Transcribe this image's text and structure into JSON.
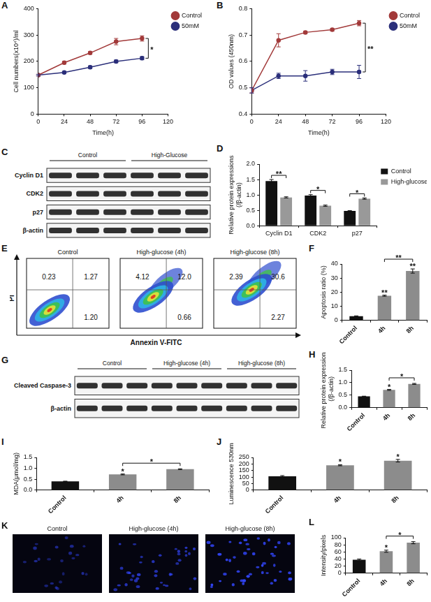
{
  "chart_data": [
    {
      "panel": "A",
      "type": "line",
      "x": [
        0,
        24,
        48,
        72,
        96
      ],
      "xlim": [
        0,
        120
      ],
      "xticks": [
        0,
        24,
        48,
        72,
        96,
        120
      ],
      "ylim": [
        0,
        400
      ],
      "yticks": [
        0,
        100,
        200,
        300,
        400
      ],
      "x_label": "Time(h)",
      "y_label": "Cell numbers(x10⁴)/ml",
      "grid": false,
      "legend": "top-right",
      "marker": "circle",
      "series": [
        {
          "name": "Control",
          "color": "#a23a3a",
          "values": [
            148,
            195,
            232,
            275,
            287
          ],
          "errors": [
            3,
            5,
            5,
            12,
            10
          ]
        },
        {
          "name": "50mM",
          "color": "#2b2f7a",
          "values": [
            148,
            158,
            178,
            200,
            212
          ],
          "errors": [
            3,
            4,
            5,
            5,
            6
          ]
        }
      ],
      "annotations": [
        {
          "text": "*",
          "x": 96
        }
      ]
    },
    {
      "panel": "B",
      "type": "line",
      "x": [
        0,
        24,
        48,
        72,
        96
      ],
      "xlim": [
        0,
        120
      ],
      "xticks": [
        0,
        24,
        48,
        72,
        96,
        120
      ],
      "ylim": [
        0.4,
        0.8
      ],
      "yticks": [
        0.4,
        0.5,
        0.6,
        0.7,
        0.8
      ],
      "x_label": "Time(h)",
      "y_label": "OD values (450nm)",
      "grid": false,
      "legend": "top-right",
      "marker": "circle",
      "series": [
        {
          "name": "Control",
          "color": "#a23a3a",
          "values": [
            0.49,
            0.68,
            0.71,
            0.72,
            0.745
          ],
          "errors": [
            0.01,
            0.025,
            0.005,
            0.005,
            0.01
          ]
        },
        {
          "name": "50mM",
          "color": "#2b2f7a",
          "values": [
            0.49,
            0.545,
            0.545,
            0.56,
            0.56
          ],
          "errors": [
            0.01,
            0.01,
            0.02,
            0.01,
            0.025
          ]
        }
      ],
      "annotations": [
        {
          "text": "**",
          "x": 96
        }
      ]
    },
    {
      "panel": "D",
      "type": "bar",
      "categories": [
        "Cyclin D1",
        "CDK2",
        "p27"
      ],
      "ylim": [
        0,
        2
      ],
      "yticks": [
        {
          "value": 0,
          "label": "0.0"
        },
        0.5,
        {
          "value": 1,
          "label": "1.0"
        },
        1.5,
        {
          "value": 2,
          "label": "2.0"
        }
      ],
      "y_label": [
        "Relative protein expressions",
        "(/β-actin)"
      ],
      "grid": false,
      "legend": "top-right",
      "series": [
        {
          "name": "Control",
          "color": "#111111",
          "values": [
            1.45,
            0.98,
            0.48
          ],
          "errors": [
            0.05,
            0.03,
            0.01
          ]
        },
        {
          "name": "High-glucose",
          "color": "#999999",
          "values": [
            0.92,
            0.65,
            0.88
          ],
          "errors": [
            0.02,
            0.02,
            0.02
          ]
        }
      ],
      "annotations": [
        {
          "text": "**",
          "category": "Cyclin D1"
        },
        {
          "text": "*",
          "category": "CDK2"
        },
        {
          "text": "*",
          "category": "p27"
        }
      ]
    },
    {
      "panel": "F",
      "type": "bar",
      "categories": [
        "Control",
        "4h",
        "8h"
      ],
      "values": [
        3,
        17.5,
        35
      ],
      "errors": [
        0.2,
        0.4,
        1.5
      ],
      "colors": [
        "#111111",
        "#8c8c8c",
        "#8c8c8c"
      ],
      "ylim": [
        0,
        40
      ],
      "yticks": [
        0,
        10,
        20,
        30,
        40
      ],
      "y_label": "Apoptosis ratio (%)",
      "grid": false,
      "annotations": [
        {
          "text": "**",
          "category": "4h"
        },
        {
          "text": "**",
          "category": "8h"
        },
        {
          "text": "**",
          "categories": [
            "4h",
            "8h"
          ]
        }
      ]
    },
    {
      "panel": "H",
      "type": "bar",
      "categories": [
        "Control",
        "4h",
        "8h"
      ],
      "values": [
        0.45,
        0.71,
        0.95
      ],
      "errors": [
        0.01,
        0.02,
        0.02
      ],
      "colors": [
        "#111111",
        "#8c8c8c",
        "#8c8c8c"
      ],
      "ylim": [
        0,
        1.5
      ],
      "yticks": [
        {
          "value": 0,
          "label": "0.0"
        },
        0.5,
        {
          "value": 1,
          "label": "1.0"
        },
        1.5
      ],
      "y_label": [
        "Relative protein expressions",
        "(/β-actin)"
      ],
      "grid": false,
      "annotations": [
        {
          "text": "*",
          "category": "4h"
        },
        {
          "text": "*",
          "categories": [
            "4h",
            "8h"
          ]
        }
      ]
    },
    {
      "panel": "I",
      "type": "bar",
      "categories": [
        "Control",
        "4h",
        "8h"
      ],
      "values": [
        0.4,
        0.72,
        0.96
      ],
      "errors": [
        0.01,
        0.02,
        0.02
      ],
      "colors": [
        "#111111",
        "#8c8c8c",
        "#8c8c8c"
      ],
      "ylim": [
        0,
        1.5
      ],
      "yticks": [
        {
          "value": 0,
          "label": "0.0"
        },
        0.5,
        {
          "value": 1,
          "label": "1.0"
        },
        1.5
      ],
      "y_label": "MDA(μmol/mg)",
      "grid": false,
      "annotations": [
        {
          "text": "*",
          "category": "4h"
        },
        {
          "text": "*",
          "categories": [
            "4h",
            "8h"
          ]
        }
      ]
    },
    {
      "panel": "J",
      "type": "bar",
      "categories": [
        "Control",
        "4h",
        "8h"
      ],
      "values": [
        105,
        190,
        225
      ],
      "errors": [
        6,
        4,
        10
      ],
      "colors": [
        "#111111",
        "#8c8c8c",
        "#8c8c8c"
      ],
      "ylim": [
        0,
        250
      ],
      "yticks": [
        0,
        50,
        100,
        150,
        200,
        250
      ],
      "y_label": "Luminescence 530nm",
      "grid": false,
      "annotations": [
        {
          "text": "*",
          "category": "4h"
        },
        {
          "text": "*",
          "category": "8h"
        }
      ]
    },
    {
      "panel": "L",
      "type": "bar",
      "categories": [
        "Control",
        "4h",
        "8h"
      ],
      "values": [
        38,
        62,
        86
      ],
      "errors": [
        2,
        3,
        3
      ],
      "colors": [
        "#111111",
        "#8c8c8c",
        "#8c8c8c"
      ],
      "ylim": [
        0,
        100
      ],
      "yticks": [
        0,
        20,
        40,
        60,
        80,
        100
      ],
      "y_label": "Intensity/pixels",
      "grid": false,
      "annotations": [
        {
          "text": "*",
          "category": "4h"
        },
        {
          "text": "*",
          "categories": [
            "4h",
            "8h"
          ]
        }
      ]
    }
  ],
  "blots": [
    {
      "panel": "C",
      "groups": [
        "Control",
        "High-Glucose"
      ],
      "rows": [
        "Cyclin D1",
        "CDK2",
        "p27",
        "β-actin"
      ]
    },
    {
      "panel": "G",
      "groups": [
        "Control",
        "High-glucose (4h)",
        "High-glucose (8h)"
      ],
      "rows": [
        "Cleaved Caspase-3",
        "β-actin"
      ]
    }
  ],
  "flow": {
    "panel": "E",
    "x_label": "Annexin V-FITC",
    "y_label": "PI",
    "plots": [
      {
        "title": "Control",
        "Q1": "0.23",
        "Q2": "1.27",
        "Q3": "1.20"
      },
      {
        "title": "High-glucose (4h)",
        "Q1": "4.12",
        "Q2": "12.0",
        "Q3": "0.66"
      },
      {
        "title": "High-glucose (8h)",
        "Q1": "2.39",
        "Q2": "30.6",
        "Q3": "2.27"
      }
    ]
  },
  "images": {
    "panel": "K",
    "titles": [
      "Control",
      "High-glucose (4h)",
      "High-glucose (8h)"
    ]
  }
}
